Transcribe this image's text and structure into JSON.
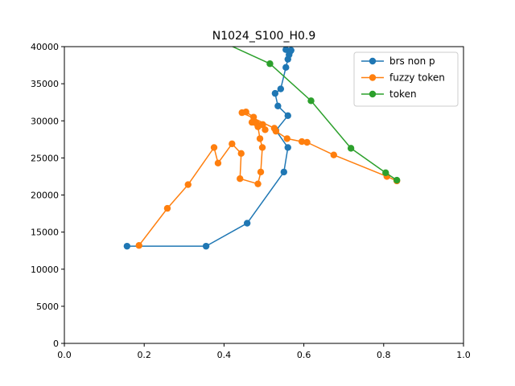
{
  "chart_data": {
    "type": "line",
    "title": "N1024_S100_H0.9",
    "xlabel": "",
    "ylabel": "",
    "xlim": [
      0,
      1
    ],
    "ylim": [
      0,
      40000
    ],
    "xticks": [
      "0.0",
      "0.2",
      "0.4",
      "0.6",
      "0.8",
      "1.0"
    ],
    "yticks": [
      "0",
      "5000",
      "10000",
      "15000",
      "20000",
      "25000",
      "30000",
      "35000",
      "40000"
    ],
    "grid": false,
    "legend_position": "top-right",
    "series": [
      {
        "name": "brs non p",
        "color": "#1f77b4",
        "points": [
          [
            0.157,
            13100
          ],
          [
            0.355,
            13100
          ],
          [
            0.458,
            16200
          ],
          [
            0.55,
            23100
          ],
          [
            0.56,
            26400
          ],
          [
            0.53,
            28700
          ],
          [
            0.56,
            30700
          ],
          [
            0.535,
            32000
          ],
          [
            0.528,
            33700
          ],
          [
            0.542,
            34300
          ],
          [
            0.555,
            37200
          ],
          [
            0.56,
            38300
          ],
          [
            0.563,
            38900
          ],
          [
            0.565,
            39300
          ],
          [
            0.555,
            39600
          ],
          [
            0.568,
            39500
          ],
          [
            0.562,
            40500
          ],
          [
            0.57,
            41500
          ]
        ]
      },
      {
        "name": "fuzzy token",
        "color": "#ff7f0e",
        "points": [
          [
            0.187,
            13200
          ],
          [
            0.258,
            18200
          ],
          [
            0.31,
            21400
          ],
          [
            0.375,
            26400
          ],
          [
            0.385,
            24300
          ],
          [
            0.42,
            26900
          ],
          [
            0.443,
            25600
          ],
          [
            0.44,
            22200
          ],
          [
            0.485,
            21500
          ],
          [
            0.492,
            23100
          ],
          [
            0.496,
            26400
          ],
          [
            0.49,
            27600
          ],
          [
            0.485,
            29200
          ],
          [
            0.48,
            29700
          ],
          [
            0.497,
            29500
          ],
          [
            0.503,
            28800
          ],
          [
            0.488,
            29400
          ],
          [
            0.47,
            29800
          ],
          [
            0.474,
            30500
          ],
          [
            0.455,
            31200
          ],
          [
            0.445,
            31100
          ],
          [
            0.526,
            29000
          ],
          [
            0.53,
            28600
          ],
          [
            0.558,
            27600
          ],
          [
            0.595,
            27200
          ],
          [
            0.608,
            27100
          ],
          [
            0.675,
            25400
          ],
          [
            0.808,
            22500
          ],
          [
            0.833,
            21900
          ]
        ]
      },
      {
        "name": "token",
        "color": "#2ca02c",
        "points": [
          [
            0.3,
            43000
          ],
          [
            0.515,
            37700
          ],
          [
            0.618,
            32700
          ],
          [
            0.718,
            26300
          ],
          [
            0.805,
            23000
          ],
          [
            0.833,
            22000
          ]
        ]
      }
    ]
  }
}
